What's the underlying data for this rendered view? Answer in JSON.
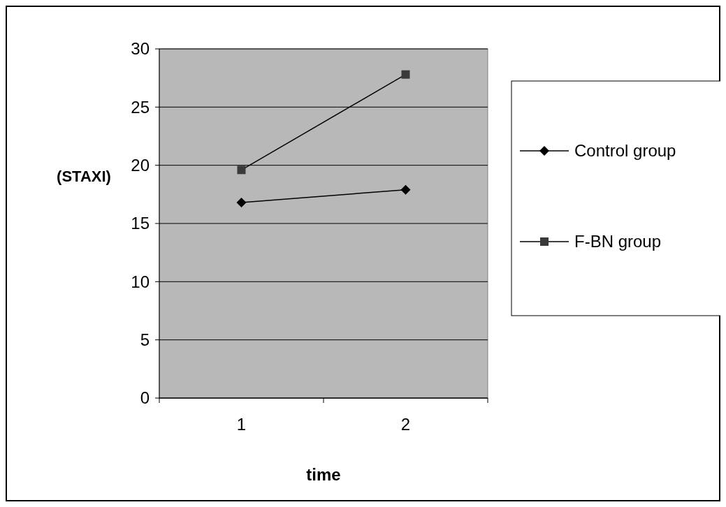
{
  "chart_data": {
    "type": "line",
    "xlabel": "time",
    "ylabel": "(STAXI)",
    "categories": [
      "1",
      "2"
    ],
    "series": [
      {
        "name": "Control group",
        "color": "#000000",
        "marker": "diamond",
        "values": [
          16.8,
          17.9
        ]
      },
      {
        "name": "F-BN group",
        "color": "#3a3a3a",
        "marker": "square",
        "values": [
          19.6,
          27.8
        ]
      }
    ],
    "ylim": [
      0,
      30
    ],
    "yticks": [
      0,
      5,
      10,
      15,
      20,
      25,
      30
    ],
    "grid": "y",
    "legend": "right"
  }
}
